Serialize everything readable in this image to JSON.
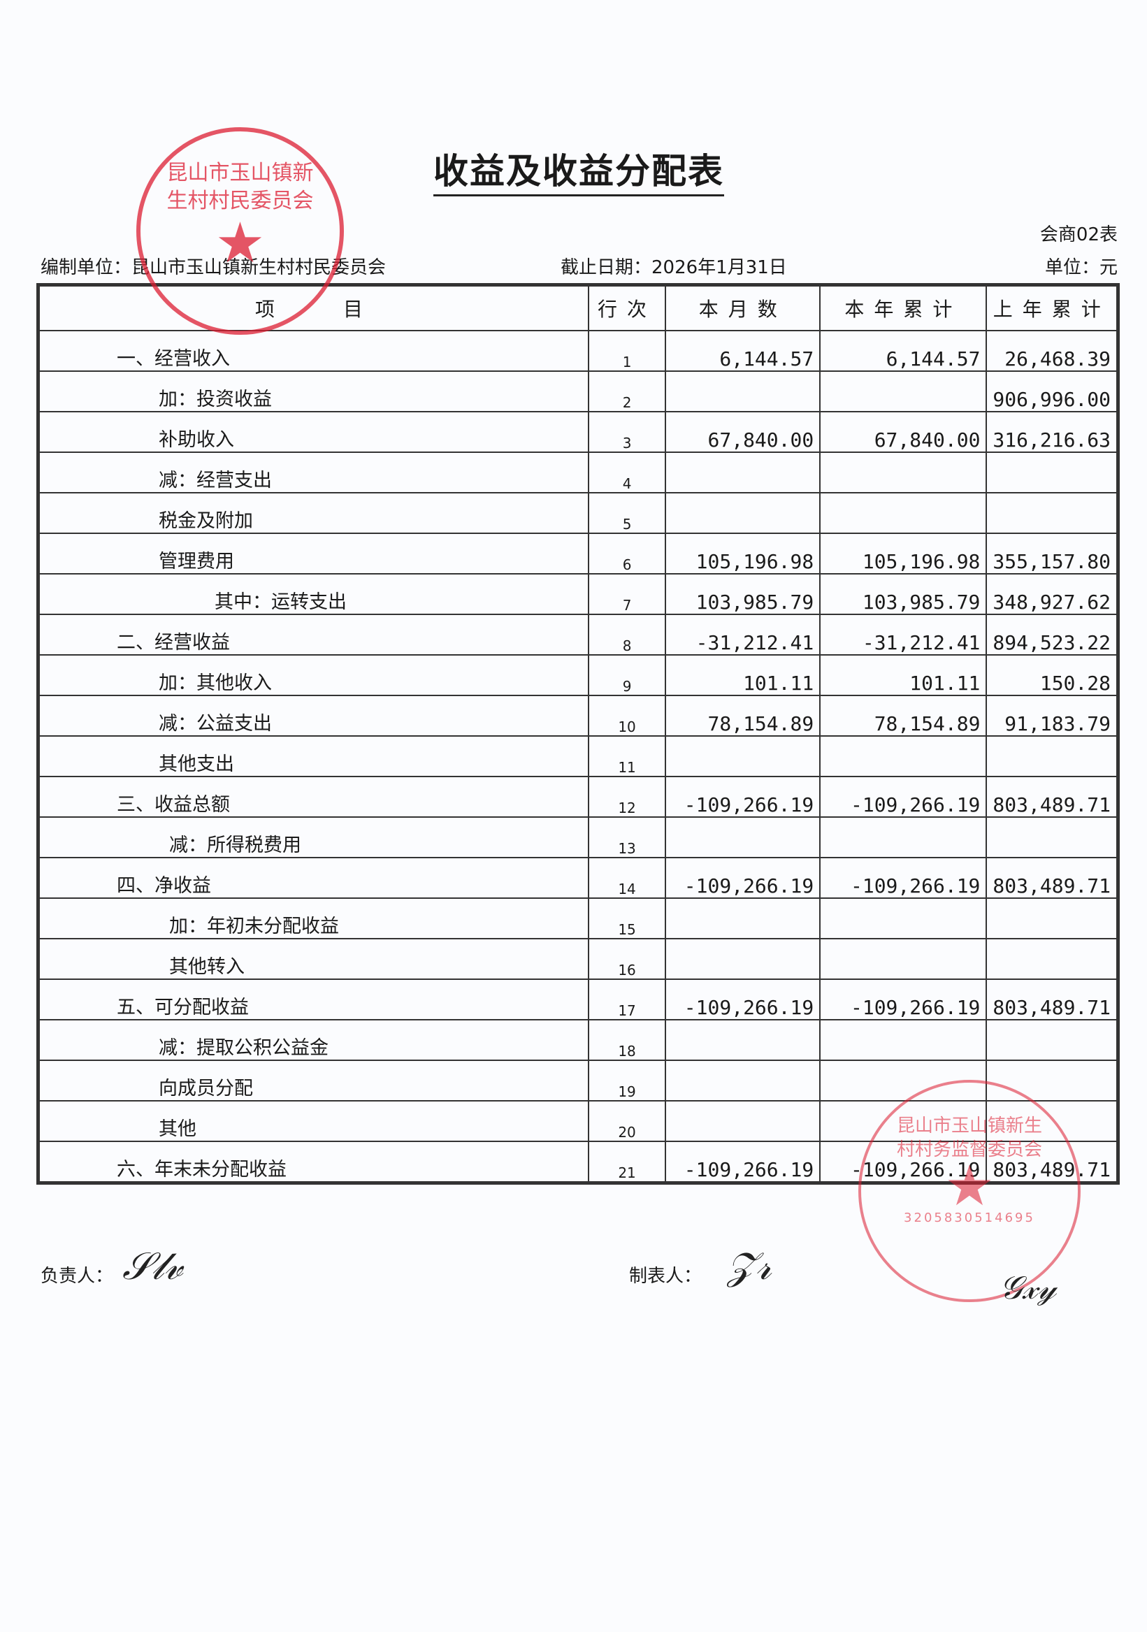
{
  "title": "收益及收益分配表",
  "form_code": "会商02表",
  "unit_label": "编制单位：昆山市玉山镇新生村村民委员会",
  "date_label": "截止日期：2026年1月31日",
  "currency_label": "单位：元",
  "headers": [
    "项　　目",
    "行次",
    "本月数",
    "本年累计",
    "上年累计"
  ],
  "rows": [
    {
      "item": "一、经营收入",
      "line": "1",
      "month": "6,144.57",
      "ytd": "6,144.57",
      "prev": "26,468.39",
      "indent": "l0"
    },
    {
      "item": "加：投资收益",
      "line": "2",
      "month": "",
      "ytd": "",
      "prev": "906,996.00",
      "indent": "l1"
    },
    {
      "item": "补助收入",
      "line": "3",
      "month": "67,840.00",
      "ytd": "67,840.00",
      "prev": "316,216.63",
      "indent": "l1"
    },
    {
      "item": "减：经营支出",
      "line": "4",
      "month": "",
      "ytd": "",
      "prev": "",
      "indent": "l1"
    },
    {
      "item": "税金及附加",
      "line": "5",
      "month": "",
      "ytd": "",
      "prev": "",
      "indent": "l1"
    },
    {
      "item": "管理费用",
      "line": "6",
      "month": "105,196.98",
      "ytd": "105,196.98",
      "prev": "355,157.80",
      "indent": "l1"
    },
    {
      "item": "其中：运转支出",
      "line": "7",
      "month": "103,985.79",
      "ytd": "103,985.79",
      "prev": "348,927.62",
      "indent": "l2"
    },
    {
      "item": "二、经营收益",
      "line": "8",
      "month": "-31,212.41",
      "ytd": "-31,212.41",
      "prev": "894,523.22",
      "indent": "l0"
    },
    {
      "item": "加：其他收入",
      "line": "9",
      "month": "101.11",
      "ytd": "101.11",
      "prev": "150.28",
      "indent": "l1"
    },
    {
      "item": "减：公益支出",
      "line": "10",
      "month": "78,154.89",
      "ytd": "78,154.89",
      "prev": "91,183.79",
      "indent": "l1"
    },
    {
      "item": "其他支出",
      "line": "11",
      "month": "",
      "ytd": "",
      "prev": "",
      "indent": "l1"
    },
    {
      "item": "三、收益总额",
      "line": "12",
      "month": "-109,266.19",
      "ytd": "-109,266.19",
      "prev": "803,489.71",
      "indent": "l0"
    },
    {
      "item": "减：所得税费用",
      "line": "13",
      "month": "",
      "ytd": "",
      "prev": "",
      "indent": "l1b"
    },
    {
      "item": "四、净收益",
      "line": "14",
      "month": "-109,266.19",
      "ytd": "-109,266.19",
      "prev": "803,489.71",
      "indent": "l0"
    },
    {
      "item": "加：年初未分配收益",
      "line": "15",
      "month": "",
      "ytd": "",
      "prev": "",
      "indent": "l1b"
    },
    {
      "item": "其他转入",
      "line": "16",
      "month": "",
      "ytd": "",
      "prev": "",
      "indent": "l1b"
    },
    {
      "item": "五、可分配收益",
      "line": "17",
      "month": "-109,266.19",
      "ytd": "-109,266.19",
      "prev": "803,489.71",
      "indent": "l0"
    },
    {
      "item": "减：提取公积公益金",
      "line": "18",
      "month": "",
      "ytd": "",
      "prev": "",
      "indent": "l1"
    },
    {
      "item": "向成员分配",
      "line": "19",
      "month": "",
      "ytd": "",
      "prev": "",
      "indent": "l1"
    },
    {
      "item": "其他",
      "line": "20",
      "month": "",
      "ytd": "",
      "prev": "",
      "indent": "l1"
    },
    {
      "item": "六、年末未分配收益",
      "line": "21",
      "month": "-109,266.19",
      "ytd": "-109,266.19",
      "prev": "803,489.71",
      "indent": "l0"
    }
  ],
  "footer": {
    "responsible_label": "负责人：",
    "preparer_label": "制表人："
  },
  "stamps": {
    "stamp1_text": "昆山市玉山镇新生村村民委员会",
    "stamp2_text": "昆山市玉山镇新生村村务监督委员会",
    "stamp2_code": "3205830514695"
  },
  "colors": {
    "stamp": "#dc1e32",
    "ink": "#1a1a1a"
  }
}
